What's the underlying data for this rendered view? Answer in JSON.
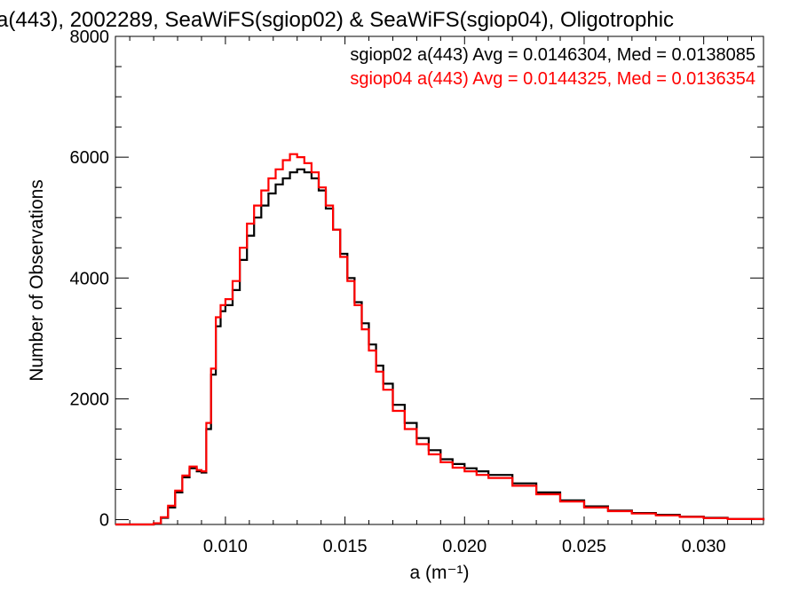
{
  "chart_data": {
    "type": "line",
    "title": "a(443), 2002289, SeaWiFS(sgiop02) & SeaWiFS(sgiop04), Oligotrophic",
    "xlabel": "a (m⁻¹)",
    "ylabel": "Number of Observations",
    "xlim": [
      0.0054,
      0.0325
    ],
    "ylim": [
      -80,
      8000
    ],
    "x_ticks": [
      0.01,
      0.015,
      0.02,
      0.025,
      0.03
    ],
    "x_tick_labels": [
      "0.010",
      "0.015",
      "0.020",
      "0.025",
      "0.030"
    ],
    "y_ticks": [
      0,
      2000,
      4000,
      6000,
      8000
    ],
    "y_tick_labels": [
      "0",
      "2000",
      "4000",
      "6000",
      "8000"
    ],
    "legend_position": "top-right",
    "grid": false,
    "series": [
      {
        "name": "sgiop02 a(443) Avg = 0.0146304, Med = 0.0138085",
        "color": "#000000",
        "x": [
          0.0054,
          0.006,
          0.0066,
          0.007,
          0.0073,
          0.0076,
          0.0079,
          0.0082,
          0.0085,
          0.0088,
          0.009,
          0.0092,
          0.0094,
          0.0096,
          0.0098,
          0.01,
          0.0103,
          0.0106,
          0.0109,
          0.0112,
          0.0115,
          0.0118,
          0.0121,
          0.0124,
          0.0127,
          0.013,
          0.0133,
          0.0136,
          0.0139,
          0.0142,
          0.0145,
          0.0148,
          0.0151,
          0.0154,
          0.0157,
          0.016,
          0.0163,
          0.0166,
          0.017,
          0.0175,
          0.018,
          0.0185,
          0.019,
          0.0195,
          0.02,
          0.0205,
          0.021,
          0.022,
          0.023,
          0.024,
          0.025,
          0.026,
          0.027,
          0.028,
          0.029,
          0.03,
          0.031,
          0.0325
        ],
        "y": [
          -80,
          -80,
          -80,
          -60,
          30,
          200,
          450,
          700,
          850,
          800,
          780,
          1500,
          2400,
          3200,
          3450,
          3550,
          3800,
          4300,
          4700,
          5000,
          5200,
          5400,
          5550,
          5650,
          5750,
          5800,
          5750,
          5650,
          5450,
          5150,
          4800,
          4400,
          4000,
          3600,
          3250,
          2900,
          2550,
          2250,
          1900,
          1600,
          1350,
          1150,
          1000,
          920,
          850,
          800,
          740,
          600,
          450,
          320,
          220,
          150,
          110,
          80,
          50,
          30,
          10,
          -10
        ]
      },
      {
        "name": "sgiop04 a(443) Avg = 0.0144325, Med = 0.0136354",
        "color": "#ff0000",
        "x": [
          0.0054,
          0.006,
          0.0066,
          0.007,
          0.0073,
          0.0076,
          0.0079,
          0.0082,
          0.0085,
          0.0088,
          0.009,
          0.0092,
          0.0094,
          0.0096,
          0.0098,
          0.01,
          0.0103,
          0.0106,
          0.0109,
          0.0112,
          0.0115,
          0.0118,
          0.0121,
          0.0124,
          0.0127,
          0.013,
          0.0133,
          0.0136,
          0.0139,
          0.0142,
          0.0145,
          0.0148,
          0.0151,
          0.0154,
          0.0157,
          0.016,
          0.0163,
          0.0166,
          0.017,
          0.0175,
          0.018,
          0.0185,
          0.019,
          0.0195,
          0.02,
          0.0205,
          0.021,
          0.022,
          0.023,
          0.024,
          0.025,
          0.026,
          0.027,
          0.028,
          0.029,
          0.03,
          0.031,
          0.0325
        ],
        "y": [
          -80,
          -80,
          -80,
          -60,
          40,
          230,
          480,
          730,
          880,
          820,
          800,
          1600,
          2500,
          3350,
          3550,
          3650,
          3950,
          4500,
          4900,
          5200,
          5450,
          5650,
          5800,
          5950,
          6050,
          6000,
          5900,
          5750,
          5500,
          5200,
          4800,
          4350,
          3950,
          3550,
          3150,
          2800,
          2450,
          2150,
          1800,
          1500,
          1250,
          1080,
          950,
          860,
          800,
          740,
          690,
          560,
          420,
          300,
          200,
          140,
          100,
          70,
          45,
          25,
          10,
          -10
        ]
      }
    ]
  }
}
